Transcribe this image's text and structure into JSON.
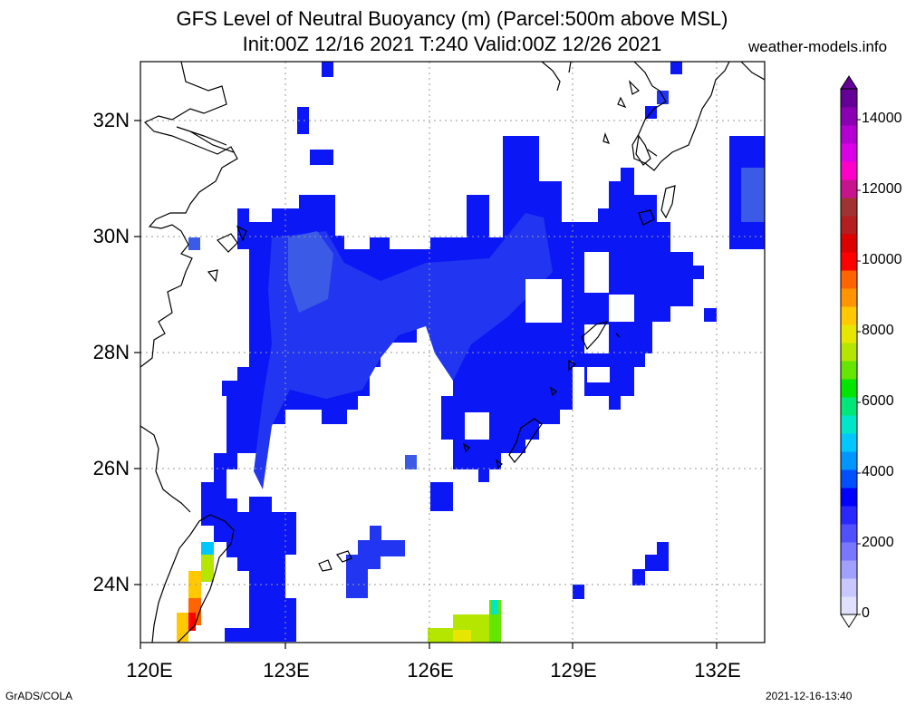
{
  "title_line1": "GFS Level of Neutral Buoyancy (m) (Parcel:500m above MSL)",
  "title_line2": "Init:00Z 12/16 2021 T:240 Valid:00Z 12/26 2021",
  "site": "weather-models.info",
  "footer_left": "GrADS/COLA",
  "footer_right": "2021-12-16-13:40",
  "lat_labels": [
    "32N",
    "30N",
    "28N",
    "26N",
    "24N"
  ],
  "lon_labels": [
    "120E",
    "123E",
    "126E",
    "129E",
    "132E"
  ],
  "colorbar_labels": [
    "14000",
    "12000",
    "10000",
    "8000",
    "6000",
    "4000",
    "2000",
    "0"
  ],
  "colorbar_colors": [
    "#e1e1ff",
    "#c8c8ff",
    "#a0a0ff",
    "#7878ff",
    "#5050ff",
    "#2828ff",
    "#0000ff",
    "#0050ff",
    "#0096ff",
    "#00c8ff",
    "#00e6c8",
    "#00e678",
    "#00e600",
    "#64e600",
    "#b4e600",
    "#e6e600",
    "#ffc800",
    "#ff9600",
    "#ff6400",
    "#ff0000",
    "#dc0000",
    "#b41e1e",
    "#a03232",
    "#c8148c",
    "#ff00c8",
    "#dc00e6",
    "#b400d2",
    "#8c00b4",
    "#640096"
  ],
  "colors": {
    "blue": "#0b17f5",
    "blue_mid": "#2235f0",
    "blue_light": "#3b5ae6"
  }
}
